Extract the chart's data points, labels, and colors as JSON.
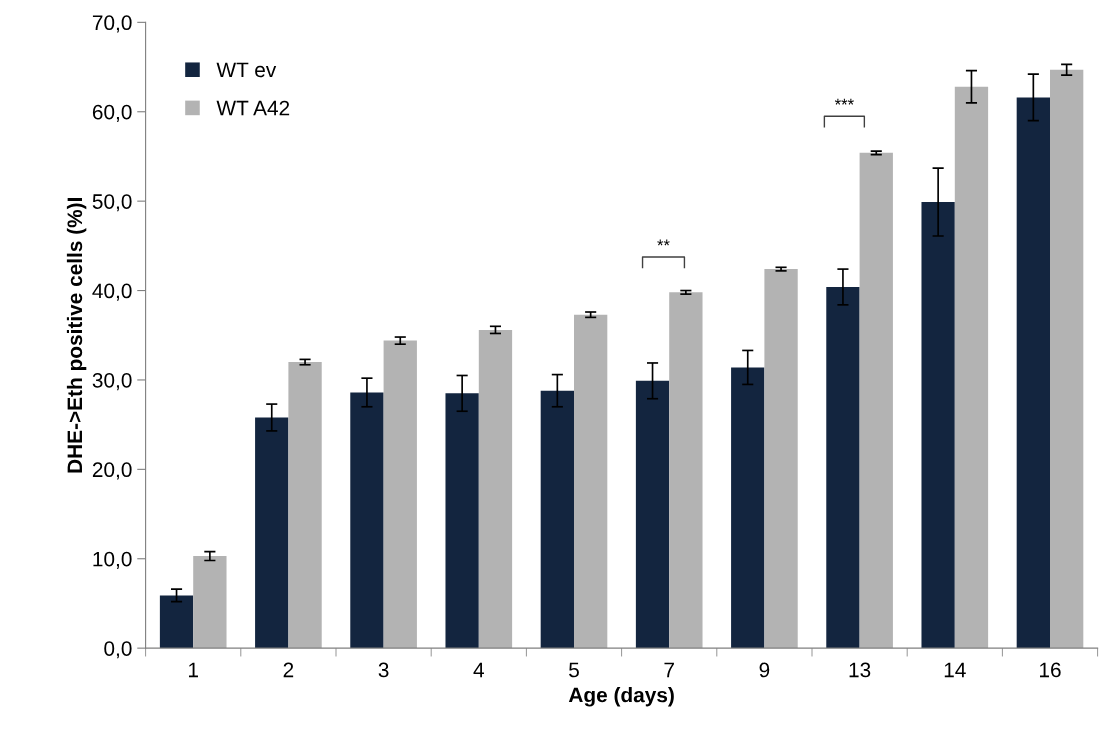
{
  "chart_data": {
    "type": "bar",
    "xlabel": "Age (days)",
    "ylabel": "DHE->Eth positive cells (%)I",
    "categories": [
      "1",
      "2",
      "3",
      "4",
      "5",
      "7",
      "9",
      "13",
      "14",
      "16"
    ],
    "series": [
      {
        "name": "WT ev",
        "color": "#13253f",
        "values": [
          5.9,
          25.8,
          28.6,
          28.5,
          28.8,
          29.9,
          31.4,
          40.4,
          49.9,
          61.6
        ],
        "errors": [
          0.7,
          1.5,
          1.6,
          2.0,
          1.8,
          2.0,
          1.9,
          2.0,
          3.8,
          2.6
        ]
      },
      {
        "name": "WT A42",
        "color": "#b3b3b3",
        "values": [
          10.3,
          32.0,
          34.4,
          35.6,
          37.3,
          39.8,
          42.4,
          55.4,
          62.8,
          64.7
        ],
        "errors": [
          0.5,
          0.3,
          0.4,
          0.4,
          0.3,
          0.2,
          0.2,
          0.2,
          1.8,
          0.6
        ]
      }
    ],
    "ylim": [
      0,
      70
    ],
    "yticks": [
      {
        "value": 0,
        "label": "0,0"
      },
      {
        "value": 10,
        "label": "10,0"
      },
      {
        "value": 20,
        "label": "20,0"
      },
      {
        "value": 30,
        "label": "30,0"
      },
      {
        "value": 40,
        "label": "40,0"
      },
      {
        "value": 50,
        "label": "50,0"
      },
      {
        "value": 60,
        "label": "60,0"
      },
      {
        "value": 70,
        "label": "70,0"
      }
    ],
    "annotations": [
      "**",
      "***"
    ],
    "legend": "top left",
    "grid": false
  }
}
